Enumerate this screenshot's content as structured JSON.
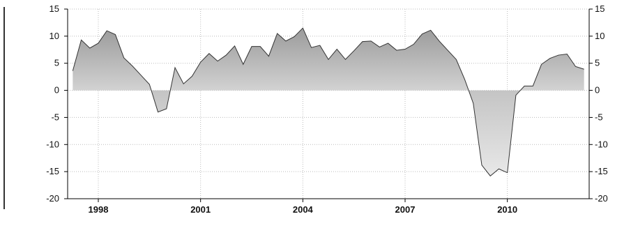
{
  "chart_data": {
    "type": "area",
    "title": "",
    "xlabel": "",
    "ylabel": "",
    "ylim": [
      -20,
      15
    ],
    "xlim": [
      1997.1,
      2012.4
    ],
    "y_ticks": [
      "15",
      "10",
      "5",
      "0",
      "-5",
      "-10",
      "-15",
      "-20"
    ],
    "x_ticks": [
      "1998",
      "2001",
      "2004",
      "2007",
      "2010"
    ],
    "grid": true,
    "legend": "none",
    "colors": {
      "positive_fill_top": "#8a8a8a",
      "positive_fill_bottom": "#d2d2d2",
      "negative_fill_top": "#c4c4c4",
      "negative_fill_bottom": "#f2f2f2",
      "line": "#333333",
      "grid": "#bbbbbb"
    },
    "series": [
      {
        "x": [
          1997.25,
          1997.5,
          1997.75,
          1998.0,
          1998.25,
          1998.5,
          1998.75,
          1999.0,
          1999.25,
          1999.5,
          1999.75,
          2000.0,
          2000.25,
          2000.5,
          2000.75,
          2001.0,
          2001.25,
          2001.5,
          2001.75,
          2002.0,
          2002.25,
          2002.5,
          2002.75,
          2003.0,
          2003.25,
          2003.5,
          2003.75,
          2004.0,
          2004.25,
          2004.5,
          2004.75,
          2005.0,
          2005.25,
          2005.5,
          2005.75,
          2006.0,
          2006.25,
          2006.5,
          2006.75,
          2007.0,
          2007.25,
          2007.5,
          2007.75,
          2008.0,
          2008.25,
          2008.5,
          2008.75,
          2009.0,
          2009.25,
          2009.5,
          2009.75,
          2010.0,
          2010.25,
          2010.5,
          2010.75,
          2011.0,
          2011.25,
          2011.5,
          2011.75,
          2012.0,
          2012.25
        ],
        "values": [
          3.6,
          9.3,
          7.8,
          8.7,
          11.0,
          10.3,
          6.0,
          4.5,
          2.8,
          1.1,
          -4.0,
          -3.4,
          4.2,
          1.2,
          2.6,
          5.2,
          6.8,
          5.4,
          6.5,
          8.2,
          4.8,
          8.1,
          8.1,
          6.3,
          10.5,
          9.1,
          9.9,
          11.5,
          7.9,
          8.3,
          5.7,
          7.6,
          5.7,
          7.3,
          9.0,
          9.1,
          8.0,
          8.7,
          7.4,
          7.6,
          8.5,
          10.4,
          11.1,
          9.1,
          7.4,
          5.7,
          2.0,
          -2.4,
          -13.8,
          -15.8,
          -14.5,
          -15.2,
          -0.9,
          0.8,
          0.8,
          4.8,
          5.9,
          6.5,
          6.7,
          4.4,
          3.9
        ]
      }
    ]
  }
}
